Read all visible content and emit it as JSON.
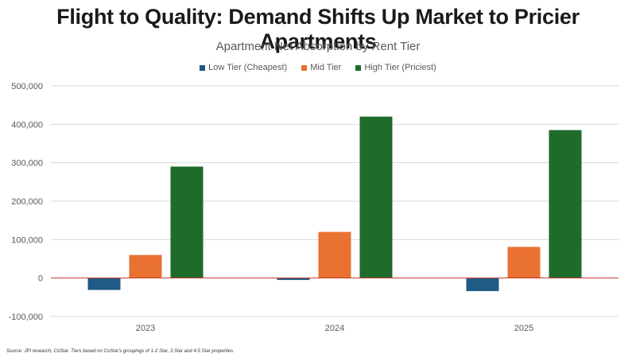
{
  "header": {
    "title": "Flight to Quality: Demand Shifts Up Market to Pricier Apartments"
  },
  "chart_data": {
    "type": "bar",
    "title": "Apartment Net Absorption by Rent Tier",
    "xlabel": "",
    "ylabel": "",
    "categories": [
      "2023",
      "2024",
      "2025"
    ],
    "series": [
      {
        "name": "Low Tier (Cheapest)",
        "color": "#1f5b85",
        "values": [
          -31000,
          -5000,
          -34000
        ]
      },
      {
        "name": "Mid Tier",
        "color": "#e97132",
        "values": [
          60000,
          120000,
          81000
        ]
      },
      {
        "name": "High Tier (Priciest)",
        "color": "#1e6b2a",
        "values": [
          290000,
          420000,
          385000
        ]
      }
    ],
    "ylim": [
      -100000,
      500000
    ],
    "yticks": [
      500000,
      400000,
      300000,
      200000,
      100000,
      0,
      -100000
    ],
    "ytick_labels": [
      "500,000",
      "400,000",
      "300,000",
      "200,000",
      "100,000",
      "0",
      "-100,000"
    ],
    "grid": true,
    "zero_line_color": "#c0392b",
    "legend_position": "top-center"
  },
  "footer": {
    "source": "Source: JPI research, CoStar. Tiers based on CoStar's groupings of 1-2 Star, 3 Star and 4-5 Star properties."
  }
}
